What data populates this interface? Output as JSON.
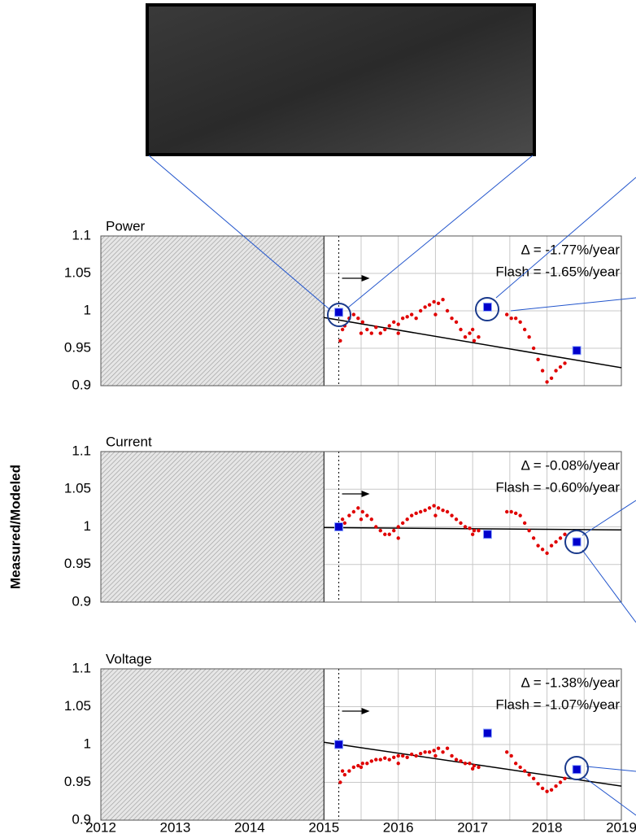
{
  "chart_data": [
    {
      "type": "scatter",
      "title": "Power",
      "annotations": [
        "Δ = -1.77%/year",
        "Flash = -1.65%/year"
      ],
      "xlim": [
        2012,
        2019
      ],
      "ylim": [
        0.9,
        1.1
      ],
      "yticks": [
        0.9,
        0.95,
        1,
        1.05,
        1.1
      ],
      "grid": true,
      "hatch_until": 2015,
      "vline": 2015.2,
      "series": [
        {
          "color": "#e00000",
          "marker": "dot",
          "x": [
            2015.22,
            2015.28,
            2015.34,
            2015.4,
            2015.46,
            2015.52,
            2015.58,
            2015.64,
            2015.7,
            2015.76,
            2015.82,
            2015.88,
            2015.94,
            2016.0,
            2016.06,
            2016.12,
            2016.18,
            2016.24,
            2016.3,
            2016.36,
            2016.42,
            2016.48,
            2016.54,
            2016.6,
            2016.66,
            2016.72,
            2016.78,
            2016.84,
            2016.9,
            2016.96,
            2017.02,
            2017.08,
            2017.46,
            2017.52,
            2017.58,
            2017.64,
            2017.7,
            2017.76,
            2017.82,
            2017.88,
            2017.94,
            2018.0,
            2018.06,
            2018.12,
            2018.18,
            2018.24,
            2015.25,
            2015.5,
            2016.0,
            2016.5,
            2017.0
          ],
          "values": [
            0.96,
            0.98,
            0.99,
            0.995,
            0.99,
            0.985,
            0.975,
            0.97,
            0.978,
            0.97,
            0.975,
            0.98,
            0.985,
            0.982,
            0.99,
            0.992,
            0.995,
            0.99,
            1.0,
            1.005,
            1.008,
            1.012,
            1.01,
            1.015,
            1.0,
            0.99,
            0.985,
            0.975,
            0.965,
            0.97,
            0.96,
            0.965,
            0.995,
            0.99,
            0.99,
            0.985,
            0.975,
            0.965,
            0.95,
            0.935,
            0.92,
            0.905,
            0.91,
            0.92,
            0.925,
            0.93,
            0.975,
            0.97,
            0.97,
            0.995,
            0.975
          ]
        },
        {
          "color": "#0000cc",
          "marker": "square",
          "x": [
            2015.2,
            2017.2,
            2018.4
          ],
          "values": [
            0.998,
            1.005,
            0.947
          ]
        }
      ],
      "trend": {
        "color": "#000000",
        "x": [
          2015,
          2019
        ],
        "values": [
          0.991,
          0.924
        ]
      }
    },
    {
      "type": "scatter",
      "title": "Current",
      "ylabel": "Measured/Modeled",
      "annotations": [
        "Δ = -0.08%/year",
        "Flash = -0.60%/year"
      ],
      "xlim": [
        2012,
        2019
      ],
      "ylim": [
        0.9,
        1.1
      ],
      "yticks": [
        0.9,
        0.95,
        1,
        1.05,
        1.1
      ],
      "grid": true,
      "hatch_until": 2015,
      "vline": 2015.2,
      "series": [
        {
          "color": "#e00000",
          "marker": "dot",
          "x": [
            2015.22,
            2015.28,
            2015.34,
            2015.4,
            2015.46,
            2015.52,
            2015.58,
            2015.64,
            2015.7,
            2015.76,
            2015.82,
            2015.88,
            2015.94,
            2016.0,
            2016.06,
            2016.12,
            2016.18,
            2016.24,
            2016.3,
            2016.36,
            2016.42,
            2016.48,
            2016.54,
            2016.6,
            2016.66,
            2016.72,
            2016.78,
            2016.84,
            2016.9,
            2016.96,
            2017.02,
            2017.08,
            2017.46,
            2017.52,
            2017.58,
            2017.64,
            2017.7,
            2017.76,
            2017.82,
            2017.88,
            2017.94,
            2018.0,
            2018.06,
            2018.12,
            2018.18,
            2018.24,
            2015.25,
            2015.5,
            2016.0,
            2016.5,
            2017.0
          ],
          "values": [
            1.0,
            1.005,
            1.015,
            1.02,
            1.025,
            1.02,
            1.015,
            1.01,
            1.0,
            0.995,
            0.99,
            0.99,
            0.995,
            1.0,
            1.005,
            1.01,
            1.015,
            1.018,
            1.02,
            1.022,
            1.025,
            1.028,
            1.025,
            1.022,
            1.02,
            1.015,
            1.01,
            1.005,
            1.0,
            0.998,
            0.995,
            0.995,
            1.02,
            1.02,
            1.018,
            1.015,
            1.005,
            0.995,
            0.985,
            0.975,
            0.97,
            0.965,
            0.975,
            0.98,
            0.985,
            0.99,
            1.01,
            1.01,
            0.985,
            1.015,
            0.99
          ]
        },
        {
          "color": "#0000cc",
          "marker": "square",
          "x": [
            2015.2,
            2017.2,
            2018.4
          ],
          "values": [
            1.0,
            0.99,
            0.98
          ]
        }
      ],
      "trend": {
        "color": "#000000",
        "x": [
          2015,
          2019
        ],
        "values": [
          0.999,
          0.996
        ]
      }
    },
    {
      "type": "scatter",
      "title": "Voltage",
      "annotations": [
        "Δ = -1.38%/year",
        "Flash = -1.07%/year"
      ],
      "xlim": [
        2012,
        2019
      ],
      "xticks": [
        2012,
        2013,
        2014,
        2015,
        2016,
        2017,
        2018,
        2019
      ],
      "ylim": [
        0.9,
        1.1
      ],
      "yticks": [
        0.9,
        0.95,
        1,
        1.05,
        1.1
      ],
      "grid": true,
      "hatch_until": 2015,
      "vline": 2015.2,
      "series": [
        {
          "color": "#e00000",
          "marker": "dot",
          "x": [
            2015.22,
            2015.28,
            2015.34,
            2015.4,
            2015.46,
            2015.52,
            2015.58,
            2015.64,
            2015.7,
            2015.76,
            2015.82,
            2015.88,
            2015.94,
            2016.0,
            2016.06,
            2016.12,
            2016.18,
            2016.24,
            2016.3,
            2016.36,
            2016.42,
            2016.48,
            2016.54,
            2016.6,
            2016.66,
            2016.72,
            2016.78,
            2016.84,
            2016.9,
            2016.96,
            2017.02,
            2017.08,
            2017.46,
            2017.52,
            2017.58,
            2017.64,
            2017.7,
            2017.76,
            2017.82,
            2017.88,
            2017.94,
            2018.0,
            2018.06,
            2018.12,
            2018.18,
            2018.24,
            2015.25,
            2015.5,
            2016.0,
            2016.5,
            2017.0
          ],
          "values": [
            0.95,
            0.96,
            0.965,
            0.97,
            0.972,
            0.975,
            0.975,
            0.978,
            0.98,
            0.98,
            0.982,
            0.98,
            0.983,
            0.985,
            0.985,
            0.983,
            0.987,
            0.985,
            0.988,
            0.99,
            0.99,
            0.992,
            0.995,
            0.99,
            0.995,
            0.985,
            0.98,
            0.978,
            0.975,
            0.975,
            0.972,
            0.97,
            0.99,
            0.985,
            0.975,
            0.97,
            0.965,
            0.96,
            0.955,
            0.948,
            0.942,
            0.938,
            0.94,
            0.945,
            0.95,
            0.955,
            0.965,
            0.97,
            0.975,
            0.985,
            0.968
          ]
        },
        {
          "color": "#0000cc",
          "marker": "square",
          "x": [
            2015.2,
            2017.2,
            2018.4
          ],
          "values": [
            1.0,
            1.015,
            0.967
          ]
        }
      ],
      "trend": {
        "color": "#000000",
        "x": [
          2015,
          2019
        ],
        "values": [
          1.003,
          0.945
        ]
      }
    }
  ]
}
